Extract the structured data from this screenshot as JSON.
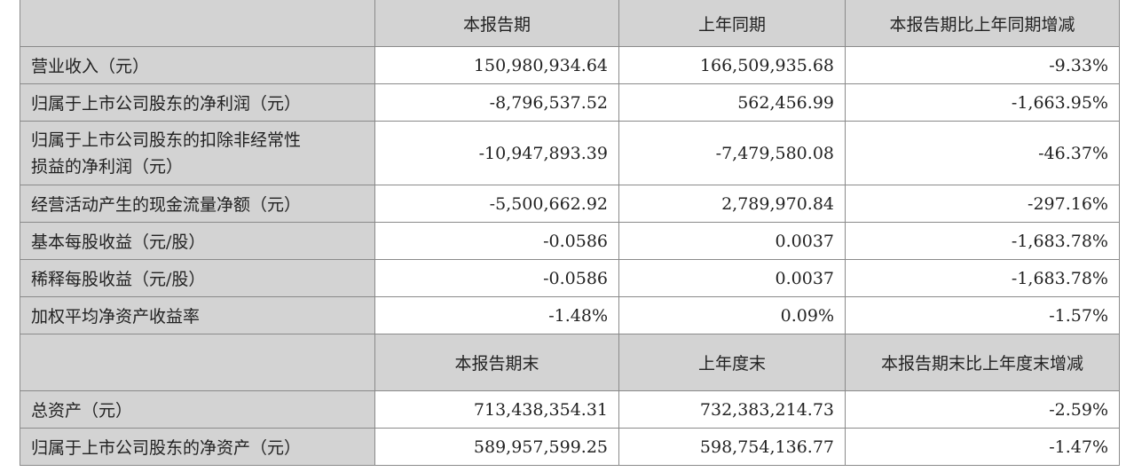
{
  "header1": [
    "",
    "本报告期",
    "上年同期",
    "本报告期比上年同期增减"
  ],
  "rows1": [
    {
      "label": "营业收入（元）",
      "values": [
        "150,980,934.64",
        "166,509,935.68",
        "-9.33%"
      ]
    },
    {
      "label": "归属于上市公司股东的净利润（元）",
      "values": [
        "-8,796,537.52",
        "562,456.99",
        "-1,663.95%"
      ]
    },
    {
      "label": "归属于上市公司股东的扣除非经常性损益的净利润（元）",
      "label_lines": [
        "归属于上市公司股东的扣除非经常性",
        "损益的净利润（元）"
      ],
      "values": [
        "-10,947,893.39",
        "-7,479,580.08",
        "-46.37%"
      ]
    },
    {
      "label": "经营活动产生的现金流量净额（元）",
      "values": [
        "-5,500,662.92",
        "2,789,970.84",
        "-297.16%"
      ]
    },
    {
      "label": "基本每股收益（元/股）",
      "values": [
        "-0.0586",
        "0.0037",
        "-1,683.78%"
      ]
    },
    {
      "label": "稀释每股收益（元/股）",
      "values": [
        "-0.0586",
        "0.0037",
        "-1,683.78%"
      ]
    },
    {
      "label": "加权平均净资产收益率",
      "values": [
        "-1.48%",
        "0.09%",
        "-1.57%"
      ]
    }
  ],
  "header2": [
    "",
    "本报告期末",
    "上年度末",
    "本报告期末比上年度末增减"
  ],
  "rows2": [
    {
      "label": "总资产（元）",
      "values": [
        "713,438,354.31",
        "732,383,214.73",
        "-2.59%"
      ]
    },
    {
      "label": "归属于上市公司股东的净资产（元）",
      "values": [
        "589,957,599.25",
        "598,754,136.77",
        "-1.47%"
      ]
    }
  ]
}
